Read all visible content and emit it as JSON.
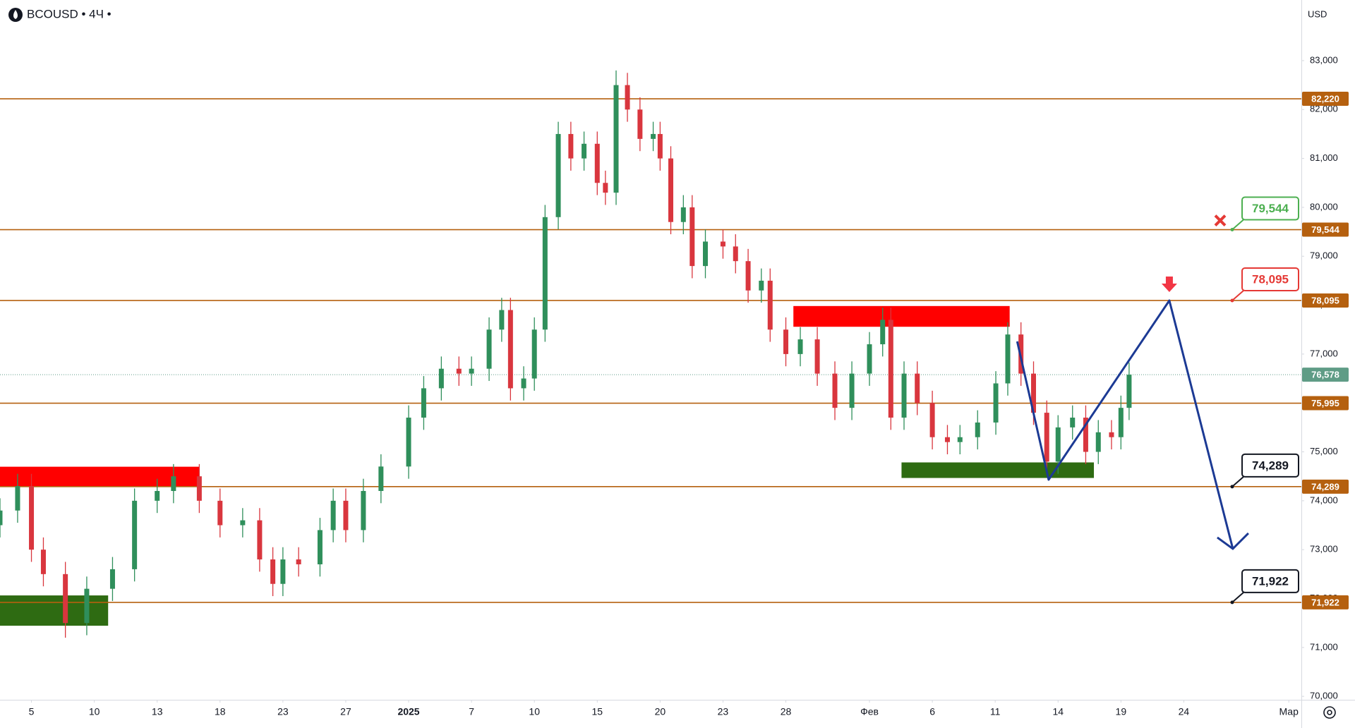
{
  "chart_data": {
    "type": "candlestick",
    "title": "BCOUSD • 4Ч •",
    "currency": "USD",
    "up_color": "#2f8f5b",
    "down_color": "#d9363e",
    "xlim": [
      -0.5,
      20.2
    ],
    "ylim": [
      69930,
      84240
    ],
    "xticks": [
      {
        "value": 0,
        "label": "5"
      },
      {
        "value": 1,
        "label": "10"
      },
      {
        "value": 2,
        "label": "13"
      },
      {
        "value": 3,
        "label": "18"
      },
      {
        "value": 4,
        "label": "23"
      },
      {
        "value": 5,
        "label": "27"
      },
      {
        "value": 6,
        "label": "2025",
        "bold": true
      },
      {
        "value": 7,
        "label": "7"
      },
      {
        "value": 8,
        "label": "10"
      },
      {
        "value": 9,
        "label": "15"
      },
      {
        "value": 10,
        "label": "20"
      },
      {
        "value": 11,
        "label": "23"
      },
      {
        "value": 12,
        "label": "28"
      },
      {
        "value": 13.33,
        "label": "Фев"
      },
      {
        "value": 14.33,
        "label": "6"
      },
      {
        "value": 15.33,
        "label": "11"
      },
      {
        "value": 16.33,
        "label": "14"
      },
      {
        "value": 17.33,
        "label": "19"
      },
      {
        "value": 18.33,
        "label": "24"
      },
      {
        "value": 20,
        "label": "Мар"
      }
    ],
    "yticks": [
      {
        "value": 70000,
        "label": "70,000"
      },
      {
        "value": 71000,
        "label": "71,000"
      },
      {
        "value": 72000,
        "label": "72,000"
      },
      {
        "value": 73000,
        "label": "73,000"
      },
      {
        "value": 74000,
        "label": "74,000"
      },
      {
        "value": 75000,
        "label": "75,000"
      },
      {
        "value": 76000,
        "label": "76,000"
      },
      {
        "value": 77000,
        "label": "77,000"
      },
      {
        "value": 78000,
        "label": "78,000"
      },
      {
        "value": 79000,
        "label": "79,000"
      },
      {
        "value": 80000,
        "label": "80,000"
      },
      {
        "value": 81000,
        "label": "81,000"
      },
      {
        "value": 82000,
        "label": "82,000"
      },
      {
        "value": 83000,
        "label": "83,000"
      }
    ],
    "x": [
      -0.5,
      -0.22,
      0,
      0.19,
      0.54,
      0.88,
      1.29,
      1.64,
      2,
      2.26,
      2.67,
      3,
      3.36,
      3.63,
      3.84,
      4,
      4.25,
      4.59,
      4.8,
      5,
      5.28,
      5.56,
      6,
      6.24,
      6.52,
      6.8,
      7,
      7.28,
      7.48,
      7.62,
      7.83,
      8,
      8.17,
      8.38,
      8.58,
      8.79,
      9,
      9.13,
      9.3,
      9.48,
      9.68,
      9.89,
      10,
      10.17,
      10.37,
      10.51,
      10.72,
      11,
      11.2,
      11.4,
      11.61,
      11.75,
      12,
      12.23,
      12.5,
      12.78,
      13.05,
      13.33,
      13.54,
      13.67,
      13.88,
      14.09,
      14.33,
      14.57,
      14.77,
      15.05,
      15.34,
      15.53,
      15.74,
      15.94,
      16.15,
      16.33,
      16.56,
      16.77,
      16.97,
      17.18,
      17.33,
      17.46
    ],
    "open": [
      73500,
      73800,
      74300,
      73000,
      72500,
      71500,
      72200,
      72600,
      74000,
      74200,
      74500,
      74000,
      73500,
      73600,
      72800,
      72300,
      72800,
      72700,
      73400,
      74000,
      73400,
      74200,
      74700,
      75700,
      76300,
      76700,
      76600,
      76700,
      77500,
      77900,
      76300,
      76500,
      77500,
      79800,
      81500,
      81000,
      81300,
      80500,
      80300,
      82500,
      82000,
      81400,
      81500,
      81000,
      79700,
      80000,
      78800,
      79300,
      79200,
      78900,
      78300,
      78500,
      77500,
      77000,
      77300,
      76600,
      75900,
      76600,
      77200,
      77700,
      75700,
      76600,
      76000,
      75300,
      75200,
      75300,
      75600,
      76400,
      77400,
      76600,
      75800,
      74800,
      75500,
      75700,
      75000,
      75400,
      75300,
      75900
    ],
    "high": [
      74050,
      74550,
      74550,
      73250,
      72750,
      72450,
      72850,
      74250,
      74450,
      74750,
      74750,
      74250,
      73850,
      73850,
      73050,
      73050,
      73050,
      73650,
      74250,
      74250,
      74450,
      74950,
      75950,
      76550,
      76950,
      76950,
      76950,
      77750,
      78150,
      78150,
      76750,
      77750,
      80050,
      81750,
      81750,
      81550,
      81550,
      80750,
      82800,
      82750,
      82250,
      81750,
      81750,
      81250,
      80250,
      80250,
      79550,
      79550,
      79450,
      79150,
      78750,
      78750,
      77750,
      77550,
      77550,
      76850,
      76850,
      77450,
      77950,
      77950,
      76850,
      76850,
      76250,
      75550,
      75550,
      75850,
      76650,
      77650,
      77650,
      76850,
      76050,
      75750,
      75950,
      75950,
      75650,
      75650,
      76150,
      76828
    ],
    "low": [
      73250,
      73550,
      72750,
      72250,
      71200,
      71250,
      71950,
      72350,
      73750,
      73950,
      73750,
      73250,
      73250,
      72550,
      72050,
      72050,
      72450,
      72450,
      73150,
      73150,
      73150,
      73950,
      74450,
      75450,
      76050,
      76350,
      76350,
      76450,
      77250,
      76050,
      76050,
      76250,
      77250,
      79550,
      80750,
      80750,
      80250,
      80050,
      80050,
      81750,
      81150,
      81150,
      80750,
      79450,
      79450,
      78550,
      78550,
      78950,
      78650,
      78050,
      78050,
      77250,
      76750,
      76750,
      76350,
      75650,
      75650,
      76350,
      76950,
      75450,
      75450,
      75750,
      75050,
      74950,
      74950,
      75050,
      75350,
      76150,
      76350,
      75550,
      74550,
      74550,
      75250,
      74750,
      74750,
      75050,
      75050,
      75650
    ],
    "close": [
      73800,
      74300,
      73000,
      72500,
      71500,
      72200,
      72600,
      74000,
      74200,
      74500,
      74000,
      73500,
      73600,
      72800,
      72300,
      72800,
      72700,
      73400,
      74000,
      73400,
      74200,
      74700,
      75700,
      76300,
      76700,
      76600,
      76700,
      77500,
      77900,
      76300,
      76500,
      77500,
      79800,
      81500,
      81000,
      81300,
      80500,
      80300,
      82500,
      82000,
      81400,
      81500,
      81000,
      79700,
      80000,
      78800,
      79300,
      79200,
      78900,
      78300,
      78500,
      77500,
      77000,
      77300,
      76600,
      75900,
      76600,
      77200,
      77700,
      75700,
      76600,
      76000,
      75300,
      75200,
      75300,
      75600,
      76400,
      77400,
      76600,
      75800,
      74800,
      75500,
      75700,
      75000,
      75400,
      75300,
      75900,
      76578
    ],
    "last_price": {
      "value": 76578,
      "label": "76,578",
      "color": "#5f9c86"
    },
    "level_color": "#b5600f",
    "levels": [
      {
        "value": 82220,
        "label": "82,220"
      },
      {
        "value": 79544,
        "label": "79,544",
        "callout": "#4caf50"
      },
      {
        "value": 78095,
        "label": "78,095",
        "callout": "#e53935"
      },
      {
        "value": 75995,
        "label": "75,995"
      },
      {
        "value": 74289,
        "label": "74,289",
        "callout": "#131722"
      },
      {
        "value": 71922,
        "label": "71,922",
        "callout": "#131722"
      }
    ],
    "zones": [
      {
        "x": [
          -0.5,
          2.67
        ],
        "y": [
          74290,
          74696
        ],
        "color": "#ff0000"
      },
      {
        "x": [
          12.12,
          15.56
        ],
        "y": [
          77558,
          77982
        ],
        "color": "#ff0000"
      },
      {
        "x": [
          -0.5,
          1.22
        ],
        "y": [
          71445,
          72064
        ],
        "color": "#2e6b12"
      },
      {
        "x": [
          13.84,
          16.9
        ],
        "y": [
          74466,
          74784
        ],
        "color": "#2e6b12"
      }
    ],
    "projection": {
      "x": [
        15.68,
        16.18,
        18.1,
        19.11
      ],
      "values": [
        77258,
        74431,
        78095,
        73018
      ],
      "color": "#1c3a94"
    }
  }
}
